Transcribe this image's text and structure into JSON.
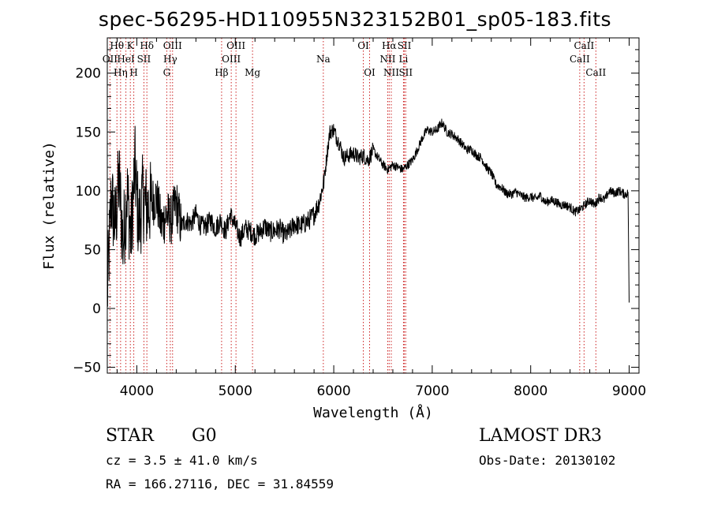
{
  "chart_data": {
    "type": "line",
    "title": "spec-56295-HD110955N323152B01_sp05-183.fits",
    "xlabel": "Wavelength (Å)",
    "ylabel": "Flux (relative)",
    "xlim": [
      3700,
      9100
    ],
    "ylim": [
      -55,
      230
    ],
    "xticks": [
      4000,
      5000,
      6000,
      7000,
      8000,
      9000
    ],
    "yticks": [
      -50,
      0,
      50,
      100,
      150,
      200
    ],
    "series": [
      {
        "x": [
          3700,
          3740,
          3780,
          3820,
          3860,
          3900,
          3940,
          3980,
          4020,
          4060,
          4100,
          4150,
          4200,
          4250,
          4300,
          4350,
          4400,
          4450,
          4500,
          4550,
          4600,
          4650,
          4700,
          4750,
          4800,
          4850,
          4900,
          4950,
          5000,
          5050,
          5100,
          5150,
          5200,
          5250,
          5300,
          5350,
          5400,
          5450,
          5500,
          5550,
          5600,
          5650,
          5700,
          5750,
          5800,
          5850,
          5900,
          5930,
          5960,
          6000,
          6030,
          6060,
          6100,
          6150,
          6200,
          6250,
          6300,
          6350,
          6400,
          6450,
          6500,
          6550,
          6600,
          6650,
          6700,
          6750,
          6800,
          6850,
          6900,
          6950,
          7000,
          7050,
          7100,
          7150,
          7200,
          7250,
          7300,
          7350,
          7400,
          7450,
          7500,
          7550,
          7600,
          7650,
          7700,
          7750,
          7800,
          7850,
          7900,
          7950,
          8000,
          8050,
          8100,
          8150,
          8200,
          8250,
          8300,
          8350,
          8400,
          8450,
          8500,
          8550,
          8600,
          8650,
          8700,
          8750,
          8800,
          8850,
          8900,
          8950,
          8990,
          9000
        ],
        "y": [
          10,
          95,
          70,
          110,
          55,
          100,
          60,
          120,
          70,
          95,
          85,
          90,
          95,
          70,
          80,
          75,
          90,
          70,
          75,
          72,
          80,
          70,
          70,
          75,
          68,
          75,
          65,
          80,
          70,
          60,
          68,
          66,
          62,
          65,
          70,
          65,
          66,
          68,
          62,
          65,
          72,
          70,
          72,
          75,
          80,
          90,
          108,
          130,
          150,
          152,
          145,
          140,
          128,
          130,
          132,
          128,
          130,
          126,
          135,
          128,
          122,
          118,
          122,
          120,
          118,
          122,
          126,
          135,
          145,
          152,
          150,
          152,
          158,
          150,
          148,
          145,
          140,
          135,
          135,
          130,
          128,
          120,
          115,
          105,
          103,
          98,
          97,
          99,
          96,
          94,
          95,
          93,
          96,
          90,
          92,
          91,
          88,
          88,
          86,
          82,
          84,
          88,
          92,
          88,
          95,
          92,
          100,
          98,
          100,
          97,
          98,
          5
        ]
      }
    ],
    "lines": [
      {
        "w": 3727,
        "label": "OII",
        "row": 2
      },
      {
        "w": 3798,
        "label": "Hθ",
        "row": 1
      },
      {
        "w": 3835,
        "label": "Hη",
        "row": 3
      },
      {
        "w": 3889,
        "label": "HeI",
        "row": 2
      },
      {
        "w": 3934,
        "label": "K",
        "row": 1
      },
      {
        "w": 3969,
        "label": "H",
        "row": 3
      },
      {
        "w": 4072,
        "label": "SII",
        "row": 2
      },
      {
        "w": 4102,
        "label": "Hδ",
        "row": 1
      },
      {
        "w": 4304,
        "label": "G",
        "row": 3
      },
      {
        "w": 4340,
        "label": "Hγ",
        "row": 2
      },
      {
        "w": 4363,
        "label": "OIII",
        "row": 1
      },
      {
        "w": 4861,
        "label": "Hβ",
        "row": 3
      },
      {
        "w": 4959,
        "label": "OIII",
        "row": 2
      },
      {
        "w": 5007,
        "label": "OIII",
        "row": 1
      },
      {
        "w": 5175,
        "label": "Mg",
        "row": 3
      },
      {
        "w": 5894,
        "label": "Na",
        "row": 2
      },
      {
        "w": 6300,
        "label": "OI",
        "row": 1
      },
      {
        "w": 6364,
        "label": "OI",
        "row": 3
      },
      {
        "w": 6548,
        "label": "NII",
        "row": 2
      },
      {
        "w": 6563,
        "label": "Hα",
        "row": 1
      },
      {
        "w": 6584,
        "label": "NII",
        "row": 3
      },
      {
        "w": 6708,
        "label": "Li",
        "row": 2
      },
      {
        "w": 6717,
        "label": "SII",
        "row": 1
      },
      {
        "w": 6731,
        "label": "SII",
        "row": 3
      },
      {
        "w": 8498,
        "label": "CaII",
        "row": 2
      },
      {
        "w": 8542,
        "label": "CaII",
        "row": 1
      },
      {
        "w": 8662,
        "label": "CaII",
        "row": 3
      }
    ],
    "colors": {
      "spectrum": "#000000",
      "lines": "#cc2222"
    }
  },
  "info": {
    "class": "STAR",
    "subclass": "G0",
    "survey": "LAMOST DR3",
    "cz": "cz = 3.5 ± 41.0 km/s",
    "obsdate": "Obs-Date: 20130102",
    "radec": "RA = 166.27116, DEC =  31.84559"
  }
}
